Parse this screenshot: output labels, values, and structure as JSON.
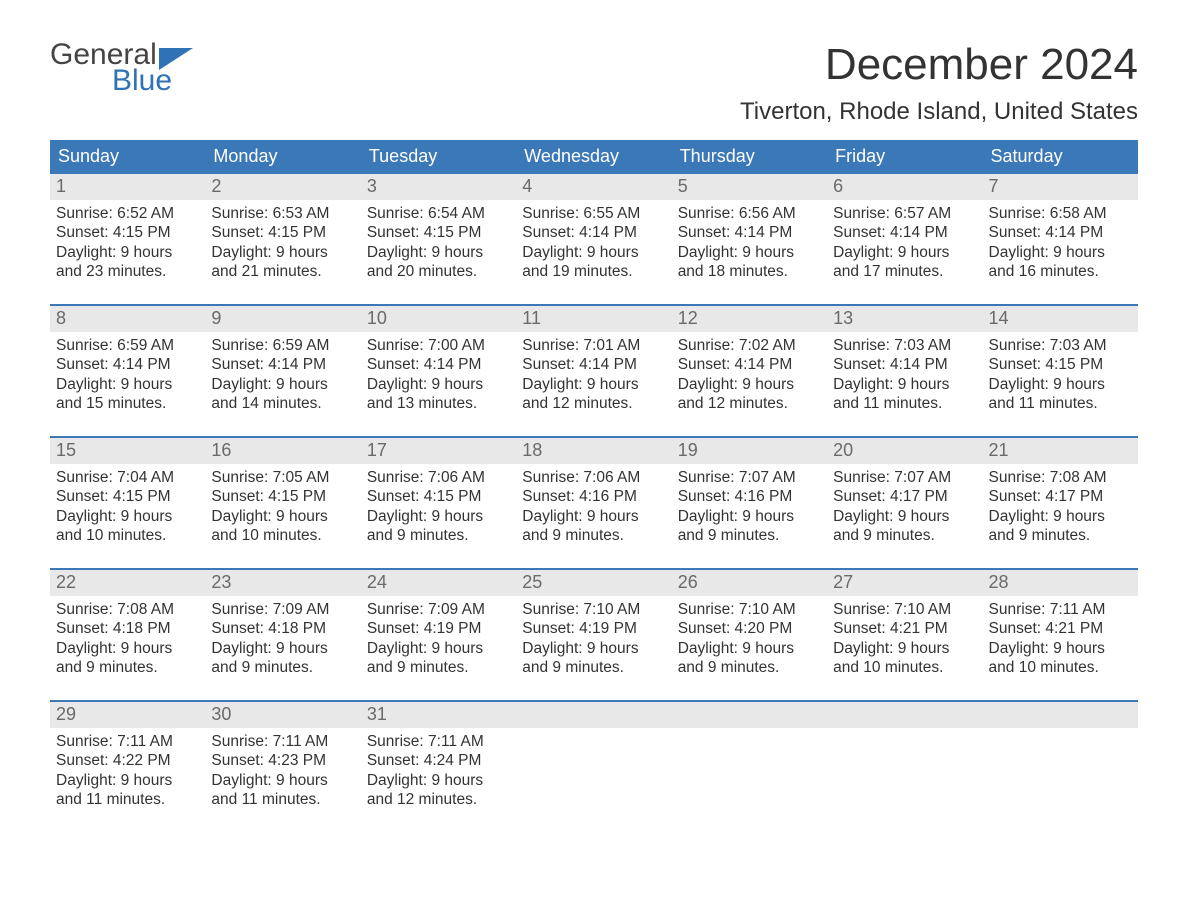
{
  "logo": {
    "line1": "General",
    "line2": "Blue"
  },
  "title": "December 2024",
  "subtitle": "Tiverton, Rhode Island, United States",
  "colors": {
    "header_bg": "#3b78b8",
    "header_fg": "#ffffff",
    "daynum_bg": "#e8e8e8",
    "daynum_fg": "#6a6a6a",
    "text": "#333333",
    "week_border": "#3b78b8",
    "logo_gray": "#444444",
    "logo_blue": "#2f72b5"
  },
  "columns": [
    "Sunday",
    "Monday",
    "Tuesday",
    "Wednesday",
    "Thursday",
    "Friday",
    "Saturday"
  ],
  "weeks": [
    [
      {
        "n": "1",
        "sunrise": "6:52 AM",
        "sunset": "4:15 PM",
        "dl1": "Daylight: 9 hours",
        "dl2": "and 23 minutes."
      },
      {
        "n": "2",
        "sunrise": "6:53 AM",
        "sunset": "4:15 PM",
        "dl1": "Daylight: 9 hours",
        "dl2": "and 21 minutes."
      },
      {
        "n": "3",
        "sunrise": "6:54 AM",
        "sunset": "4:15 PM",
        "dl1": "Daylight: 9 hours",
        "dl2": "and 20 minutes."
      },
      {
        "n": "4",
        "sunrise": "6:55 AM",
        "sunset": "4:14 PM",
        "dl1": "Daylight: 9 hours",
        "dl2": "and 19 minutes."
      },
      {
        "n": "5",
        "sunrise": "6:56 AM",
        "sunset": "4:14 PM",
        "dl1": "Daylight: 9 hours",
        "dl2": "and 18 minutes."
      },
      {
        "n": "6",
        "sunrise": "6:57 AM",
        "sunset": "4:14 PM",
        "dl1": "Daylight: 9 hours",
        "dl2": "and 17 minutes."
      },
      {
        "n": "7",
        "sunrise": "6:58 AM",
        "sunset": "4:14 PM",
        "dl1": "Daylight: 9 hours",
        "dl2": "and 16 minutes."
      }
    ],
    [
      {
        "n": "8",
        "sunrise": "6:59 AM",
        "sunset": "4:14 PM",
        "dl1": "Daylight: 9 hours",
        "dl2": "and 15 minutes."
      },
      {
        "n": "9",
        "sunrise": "6:59 AM",
        "sunset": "4:14 PM",
        "dl1": "Daylight: 9 hours",
        "dl2": "and 14 minutes."
      },
      {
        "n": "10",
        "sunrise": "7:00 AM",
        "sunset": "4:14 PM",
        "dl1": "Daylight: 9 hours",
        "dl2": "and 13 minutes."
      },
      {
        "n": "11",
        "sunrise": "7:01 AM",
        "sunset": "4:14 PM",
        "dl1": "Daylight: 9 hours",
        "dl2": "and 12 minutes."
      },
      {
        "n": "12",
        "sunrise": "7:02 AM",
        "sunset": "4:14 PM",
        "dl1": "Daylight: 9 hours",
        "dl2": "and 12 minutes."
      },
      {
        "n": "13",
        "sunrise": "7:03 AM",
        "sunset": "4:14 PM",
        "dl1": "Daylight: 9 hours",
        "dl2": "and 11 minutes."
      },
      {
        "n": "14",
        "sunrise": "7:03 AM",
        "sunset": "4:15 PM",
        "dl1": "Daylight: 9 hours",
        "dl2": "and 11 minutes."
      }
    ],
    [
      {
        "n": "15",
        "sunrise": "7:04 AM",
        "sunset": "4:15 PM",
        "dl1": "Daylight: 9 hours",
        "dl2": "and 10 minutes."
      },
      {
        "n": "16",
        "sunrise": "7:05 AM",
        "sunset": "4:15 PM",
        "dl1": "Daylight: 9 hours",
        "dl2": "and 10 minutes."
      },
      {
        "n": "17",
        "sunrise": "7:06 AM",
        "sunset": "4:15 PM",
        "dl1": "Daylight: 9 hours",
        "dl2": "and 9 minutes."
      },
      {
        "n": "18",
        "sunrise": "7:06 AM",
        "sunset": "4:16 PM",
        "dl1": "Daylight: 9 hours",
        "dl2": "and 9 minutes."
      },
      {
        "n": "19",
        "sunrise": "7:07 AM",
        "sunset": "4:16 PM",
        "dl1": "Daylight: 9 hours",
        "dl2": "and 9 minutes."
      },
      {
        "n": "20",
        "sunrise": "7:07 AM",
        "sunset": "4:17 PM",
        "dl1": "Daylight: 9 hours",
        "dl2": "and 9 minutes."
      },
      {
        "n": "21",
        "sunrise": "7:08 AM",
        "sunset": "4:17 PM",
        "dl1": "Daylight: 9 hours",
        "dl2": "and 9 minutes."
      }
    ],
    [
      {
        "n": "22",
        "sunrise": "7:08 AM",
        "sunset": "4:18 PM",
        "dl1": "Daylight: 9 hours",
        "dl2": "and 9 minutes."
      },
      {
        "n": "23",
        "sunrise": "7:09 AM",
        "sunset": "4:18 PM",
        "dl1": "Daylight: 9 hours",
        "dl2": "and 9 minutes."
      },
      {
        "n": "24",
        "sunrise": "7:09 AM",
        "sunset": "4:19 PM",
        "dl1": "Daylight: 9 hours",
        "dl2": "and 9 minutes."
      },
      {
        "n": "25",
        "sunrise": "7:10 AM",
        "sunset": "4:19 PM",
        "dl1": "Daylight: 9 hours",
        "dl2": "and 9 minutes."
      },
      {
        "n": "26",
        "sunrise": "7:10 AM",
        "sunset": "4:20 PM",
        "dl1": "Daylight: 9 hours",
        "dl2": "and 9 minutes."
      },
      {
        "n": "27",
        "sunrise": "7:10 AM",
        "sunset": "4:21 PM",
        "dl1": "Daylight: 9 hours",
        "dl2": "and 10 minutes."
      },
      {
        "n": "28",
        "sunrise": "7:11 AM",
        "sunset": "4:21 PM",
        "dl1": "Daylight: 9 hours",
        "dl2": "and 10 minutes."
      }
    ],
    [
      {
        "n": "29",
        "sunrise": "7:11 AM",
        "sunset": "4:22 PM",
        "dl1": "Daylight: 9 hours",
        "dl2": "and 11 minutes."
      },
      {
        "n": "30",
        "sunrise": "7:11 AM",
        "sunset": "4:23 PM",
        "dl1": "Daylight: 9 hours",
        "dl2": "and 11 minutes."
      },
      {
        "n": "31",
        "sunrise": "7:11 AM",
        "sunset": "4:24 PM",
        "dl1": "Daylight: 9 hours",
        "dl2": "and 12 minutes."
      },
      null,
      null,
      null,
      null
    ]
  ],
  "labels": {
    "sunrise_prefix": "Sunrise: ",
    "sunset_prefix": "Sunset: "
  }
}
